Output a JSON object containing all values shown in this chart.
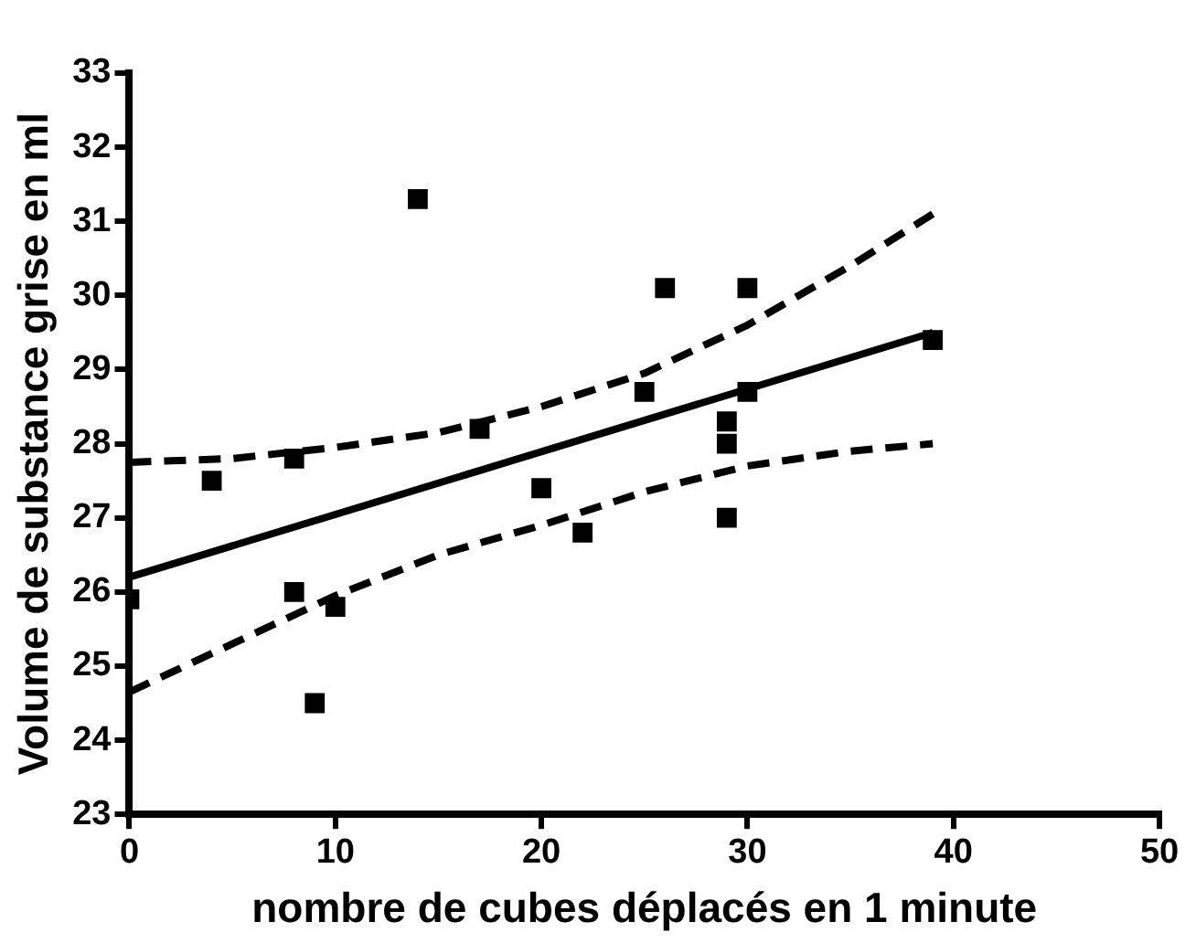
{
  "chart_data": {
    "type": "scatter",
    "xlabel": "nombre de cubes déplacés en 1 minute",
    "ylabel": "Volume de substance grise en ml",
    "xlim": [
      0,
      50
    ],
    "xticks": [
      0,
      10,
      20,
      30,
      40,
      50
    ],
    "ylim": [
      23,
      33
    ],
    "yticks": [
      23,
      24,
      25,
      26,
      27,
      28,
      29,
      30,
      31,
      32,
      33
    ],
    "legend": false,
    "series": [
      {
        "type": "scatter",
        "marker": "square",
        "color": "#000000",
        "x": [
          0,
          4,
          8,
          8,
          9,
          10,
          14,
          17,
          20,
          22,
          25,
          26,
          29,
          29,
          29,
          30,
          30,
          39
        ],
        "values": [
          25.9,
          27.5,
          27.8,
          26.0,
          24.5,
          25.8,
          31.3,
          28.2,
          27.4,
          26.8,
          28.7,
          30.1,
          28.0,
          28.3,
          27.0,
          30.1,
          28.7,
          29.4
        ]
      },
      {
        "type": "line",
        "marker": "none",
        "line_style": "solid",
        "color": "#000000",
        "x": [
          0,
          39
        ],
        "values": [
          26.2,
          29.5
        ]
      },
      {
        "type": "line",
        "marker": "none",
        "line_style": "dashed",
        "color": "#000000",
        "x": [
          0,
          5,
          10,
          15,
          20,
          25,
          30,
          35,
          39
        ],
        "values": [
          27.75,
          27.8,
          27.95,
          28.15,
          28.5,
          28.95,
          29.6,
          30.4,
          31.1
        ]
      },
      {
        "type": "line",
        "marker": "none",
        "line_style": "dashed",
        "color": "#000000",
        "x": [
          0,
          5,
          10,
          15,
          20,
          25,
          30,
          35,
          39
        ],
        "values": [
          24.65,
          25.3,
          25.95,
          26.5,
          26.9,
          27.35,
          27.7,
          27.9,
          28.0
        ]
      }
    ]
  }
}
